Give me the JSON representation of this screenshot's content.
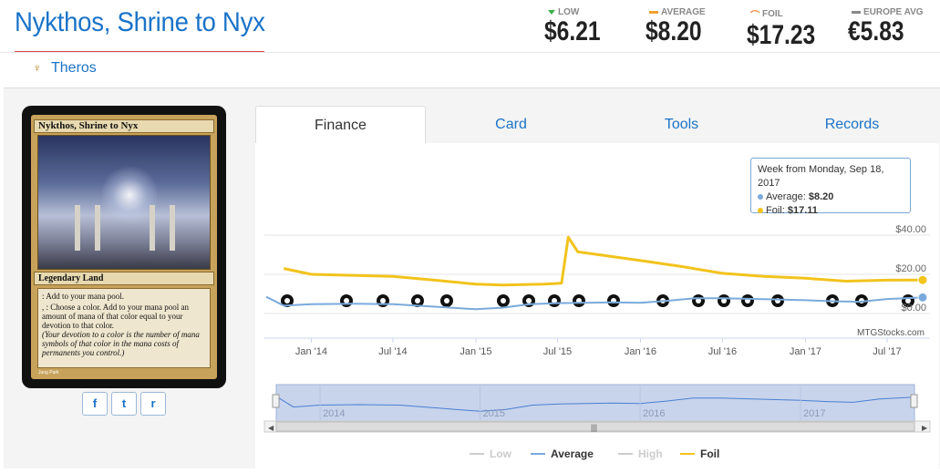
{
  "card": {
    "title": "Nykthos, Shrine to Nyx",
    "set": "Theros",
    "type_line": "Legendary Land",
    "rules_1": ": Add  to your mana pool.",
    "rules_2a": ",  : Choose a color. Add to your mana pool an amount of mana of that color equal to your devotion to that color.",
    "rules_2b": "(Your devotion to a color is the number of mana symbols of that color in the mana costs of permanents you control.)",
    "artist": "Jung Park"
  },
  "prices": [
    {
      "label": "LOW",
      "value": "$6.21",
      "marker": "tri-down"
    },
    {
      "label": "AVERAGE",
      "value": "$8.20",
      "marker": "dash-orange"
    },
    {
      "label": "FOIL",
      "value": "$17.23",
      "marker": "foil"
    },
    {
      "label": "EUROPE AVG",
      "value": "€5.83",
      "marker": "dash-gray"
    }
  ],
  "tabs": [
    "Finance",
    "Card",
    "Tools",
    "Records"
  ],
  "social": [
    "f",
    "t",
    "r"
  ],
  "tooltip": {
    "header": "Week from Monday, Sep 18, 2017",
    "avg_label": "Average:",
    "avg_value": "$8.20",
    "foil_label": "Foil:",
    "foil_value": "$17.11"
  },
  "chart_data": {
    "type": "line",
    "x_ticks": [
      "Jan '14",
      "Jul '14",
      "Jan '15",
      "Jul '15",
      "Jan '16",
      "Jul '16",
      "Jan '17",
      "Jul '17"
    ],
    "y_ticks": [
      "$0.00",
      "$20.00",
      "$40.00"
    ],
    "ylim": [
      0,
      50
    ],
    "credit": "MTGStocks.com",
    "legend": [
      "Low",
      "Average",
      "High",
      "Foil"
    ],
    "navigator_years": [
      "2014",
      "2015",
      "2016",
      "2017"
    ],
    "series": [
      {
        "name": "Average",
        "color": "#7aaadc",
        "x": [
          "2013-09-23",
          "2013-11-01",
          "2014-01-01",
          "2014-04-01",
          "2014-07-01",
          "2014-10-01",
          "2015-01-01",
          "2015-03-01",
          "2015-05-01",
          "2015-07-01",
          "2015-09-01",
          "2015-11-01",
          "2016-01-01",
          "2016-03-01",
          "2016-05-01",
          "2016-07-01",
          "2016-10-01",
          "2017-01-01",
          "2017-03-01",
          "2017-05-01",
          "2017-07-01",
          "2017-09-18"
        ],
        "values": [
          8.5,
          4.0,
          4.8,
          5.0,
          4.8,
          3.5,
          2.2,
          3.0,
          4.8,
          5.3,
          5.5,
          5.7,
          5.5,
          6.5,
          7.8,
          7.8,
          7.3,
          6.8,
          6.3,
          6.0,
          7.4,
          8.2
        ]
      },
      {
        "name": "Foil",
        "color": "#f2c31c",
        "x": [
          "2013-11-01",
          "2014-01-01",
          "2014-04-01",
          "2014-07-01",
          "2014-10-01",
          "2015-01-01",
          "2015-03-01",
          "2015-06-01",
          "2015-07-10",
          "2015-07-25",
          "2015-08-15",
          "2015-10-01",
          "2016-01-01",
          "2016-04-01",
          "2016-07-01",
          "2016-10-01",
          "2017-01-01",
          "2017-04-01",
          "2017-07-01",
          "2017-09-18"
        ],
        "values": [
          23.0,
          20.0,
          19.5,
          19.0,
          17.0,
          15.0,
          14.5,
          15.0,
          15.5,
          39.0,
          31.5,
          30.0,
          27.0,
          24.0,
          20.5,
          19.0,
          18.0,
          16.5,
          17.0,
          17.1
        ]
      }
    ]
  }
}
